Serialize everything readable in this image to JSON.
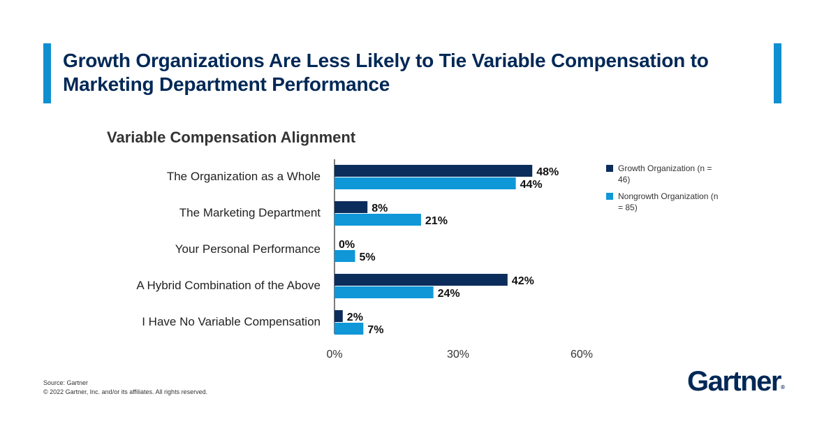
{
  "page": {
    "title": "Growth Organizations Are Less Likely to Tie Variable Compensation to Marketing Department Performance",
    "source": "Source: Gartner",
    "copyright": "© 2022 Gartner, Inc. and/or its affiliates. All rights reserved.",
    "logo": "Gartner",
    "logo_mark": "®"
  },
  "colors": {
    "accent": "#0f8fd0",
    "title": "#002856",
    "growth": "#0b2d5b",
    "nongrowth": "#0f97d8"
  },
  "chart_data": {
    "type": "bar",
    "orientation": "horizontal",
    "title": "Variable Compensation Alignment",
    "categories": [
      "The Organization as a Whole",
      "The Marketing Department",
      "Your Personal Performance",
      "A Hybrid Combination of the Above",
      "I Have No Variable Compensation"
    ],
    "series": [
      {
        "name": "Growth Organization (n = 46)",
        "color": "#0b2d5b",
        "values": [
          48,
          8,
          0,
          42,
          2
        ]
      },
      {
        "name": "Nongrowth Organization (n = 85)",
        "color": "#0f97d8",
        "values": [
          44,
          21,
          5,
          24,
          7
        ]
      }
    ],
    "xlim": [
      0,
      60
    ],
    "xticks": [
      0,
      30,
      60
    ],
    "xtick_labels": [
      "0%",
      "30%",
      "60%"
    ],
    "value_suffix": "%",
    "legend_position": "right",
    "grid": false
  }
}
